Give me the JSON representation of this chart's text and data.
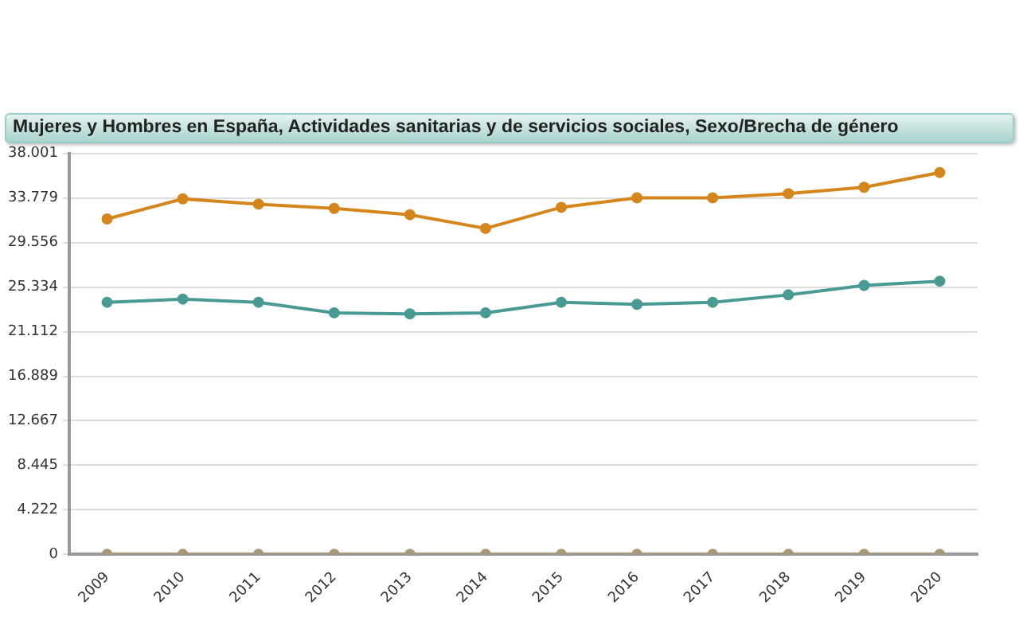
{
  "chart_data": {
    "type": "line",
    "title": "Mujeres y Hombres en España, Actividades sanitarias y de servicios sociales, Sexo/Brecha de género",
    "categories": [
      "2009",
      "2010",
      "2011",
      "2012",
      "2013",
      "2014",
      "2015",
      "2016",
      "2017",
      "2018",
      "2019",
      "2020"
    ],
    "series": [
      {
        "color": "#d4861c",
        "values": [
          31800,
          33700,
          33200,
          32800,
          32200,
          30900,
          32900,
          33800,
          33800,
          34200,
          34800,
          36200
        ]
      },
      {
        "color": "#4a9a94",
        "values": [
          23900,
          24200,
          23900,
          22900,
          22800,
          22900,
          23900,
          23700,
          23900,
          24600,
          25500,
          25900
        ]
      },
      {
        "color": "#a89878",
        "values": [
          0,
          0,
          0,
          0,
          0,
          0,
          0,
          0,
          0,
          0,
          0,
          0
        ]
      }
    ],
    "ylim": [
      0,
      38001
    ],
    "yticks": [
      0,
      {
        "value": 4222,
        "label": "4.222"
      },
      {
        "value": 8445,
        "label": "8.445"
      },
      {
        "value": 12667,
        "label": "12.667"
      },
      {
        "value": 16889,
        "label": "16.889"
      },
      {
        "value": 21112,
        "label": "21.112"
      },
      {
        "value": 25334,
        "label": "25.334"
      },
      {
        "value": 29556,
        "label": "29.556"
      },
      {
        "value": 33779,
        "label": "33.779"
      },
      {
        "value": 38001,
        "label": "38.001"
      }
    ],
    "grid": "y",
    "legend": false,
    "marker": "circle",
    "line_style": "solid"
  }
}
